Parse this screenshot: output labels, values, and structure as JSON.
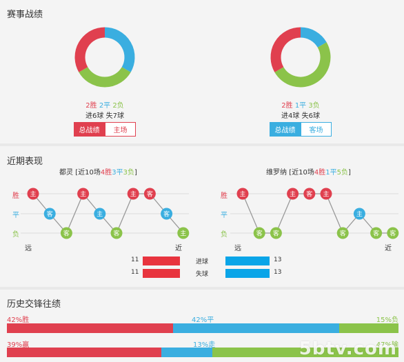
{
  "sections": {
    "record_title": "赛事战绩",
    "recent_title": "近期表现",
    "history_title": "历史交锋往绩"
  },
  "colors": {
    "win": "#e0404f",
    "draw": "#3aaee0",
    "loss": "#8bc34a"
  },
  "left_team": {
    "wins": 2,
    "draws": 2,
    "losses": 2,
    "win_label": "2胜",
    "draw_label": "2平",
    "loss_label": "2负",
    "goals_text": "进6球 失7球",
    "tab_total": "总战绩",
    "tab_home": "主场"
  },
  "right_team": {
    "wins": 2,
    "draws": 1,
    "losses": 3,
    "win_label": "2胜",
    "draw_label": "1平",
    "loss_label": "3负",
    "goals_text": "进4球 失6球",
    "tab_total": "总战绩",
    "tab_away": "客场"
  },
  "recent": {
    "left": {
      "name": "都灵",
      "summary_prefix": "[近10场",
      "w": "4胜",
      "d": "3平",
      "l": "3负",
      "summary_suffix": "]",
      "results": [
        "W",
        "D",
        "L",
        "W",
        "D",
        "L",
        "W",
        "W",
        "D",
        "L"
      ],
      "venues": [
        "主",
        "客",
        "客",
        "主",
        "主",
        "客",
        "主",
        "客",
        "客",
        "主"
      ]
    },
    "right": {
      "name": "维罗纳",
      "summary_prefix": "[近10场",
      "w": "4胜",
      "d": "1平",
      "l": "5负",
      "summary_suffix": "]",
      "results": [
        "W",
        "L",
        "L",
        "W",
        "W",
        "W",
        "L",
        "D",
        "L",
        "L"
      ],
      "venues": [
        "主",
        "客",
        "客",
        "主",
        "客",
        "主",
        "客",
        "主",
        "客",
        "客"
      ]
    },
    "y_labels": [
      "胜",
      "平",
      "负"
    ],
    "far_label": "远",
    "near_label": "近"
  },
  "goal_stats": {
    "scored_label": "进球",
    "conceded_label": "失球",
    "left_scored": 11,
    "left_conceded": 11,
    "right_scored": 13,
    "right_conceded": 13
  },
  "history": {
    "row1": {
      "a": 42,
      "b": 42,
      "c": 15,
      "a_label": "42%胜",
      "b_label": "42%平",
      "c_label": "15%负"
    },
    "row2": {
      "a": 39,
      "b": 13,
      "c": 47,
      "a_label": "39%赢",
      "b_label": "13%走",
      "c_label": "47%输"
    }
  },
  "watermark": "5btv.com"
}
